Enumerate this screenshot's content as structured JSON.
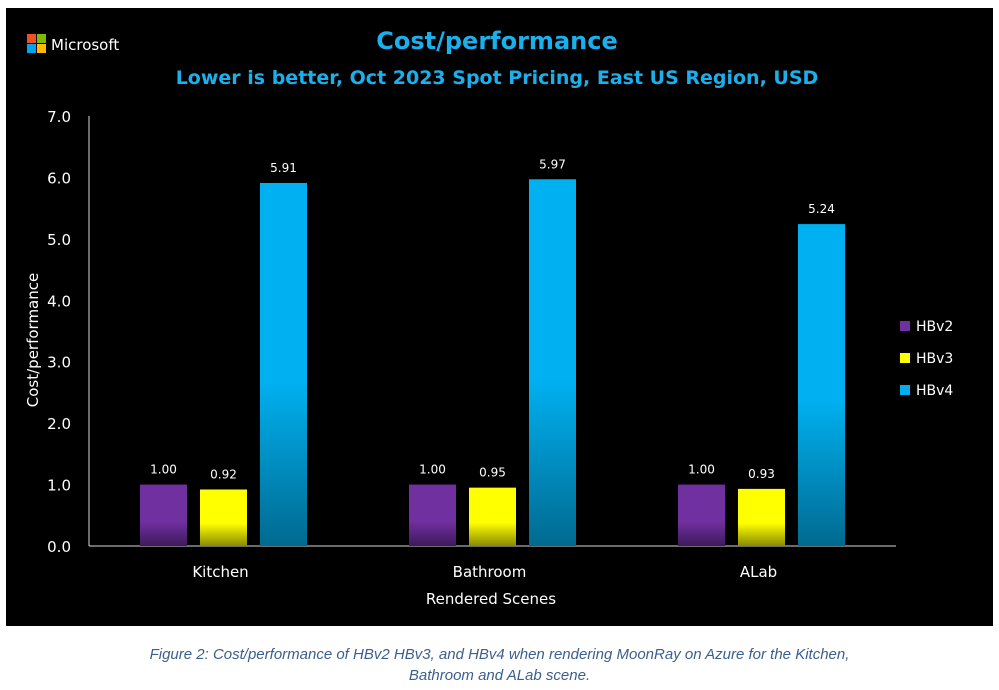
{
  "brand": {
    "name": "Microsoft",
    "logo_colors": [
      "#f25022",
      "#7fba00",
      "#00a4ef",
      "#ffb900"
    ]
  },
  "caption": {
    "line1": "Figure 2: Cost/performance of HBv2 HBv3, and HBv4 when rendering MoonRay on Azure for the Kitchen,",
    "line2": "Bathroom and ALab scene."
  },
  "chart_data": {
    "type": "bar",
    "title": "Cost/performance",
    "subtitle": "Lower is better, Oct 2023 Spot Pricing, East US Region, USD",
    "xlabel": "Rendered Scenes",
    "ylabel": "Cost/performance",
    "ylim": [
      0,
      7
    ],
    "yticks": [
      "0.0",
      "1.0",
      "2.0",
      "3.0",
      "4.0",
      "5.0",
      "6.0",
      "7.0"
    ],
    "grid": false,
    "legend_position": "right",
    "categories": [
      "Kitchen",
      "Bathroom",
      "ALab"
    ],
    "series": [
      {
        "name": "HBv2",
        "color": "#7030a0",
        "values": [
          1.0,
          1.0,
          1.0
        ],
        "labels": [
          "1.00",
          "1.00",
          "1.00"
        ]
      },
      {
        "name": "HBv3",
        "color": "#ffff00",
        "values": [
          0.92,
          0.95,
          0.93
        ],
        "labels": [
          "0.92",
          "0.95",
          "0.93"
        ]
      },
      {
        "name": "HBv4",
        "color": "#00b0f0",
        "values": [
          5.91,
          5.97,
          5.24
        ],
        "labels": [
          "5.91",
          "5.97",
          "5.24"
        ]
      }
    ]
  }
}
